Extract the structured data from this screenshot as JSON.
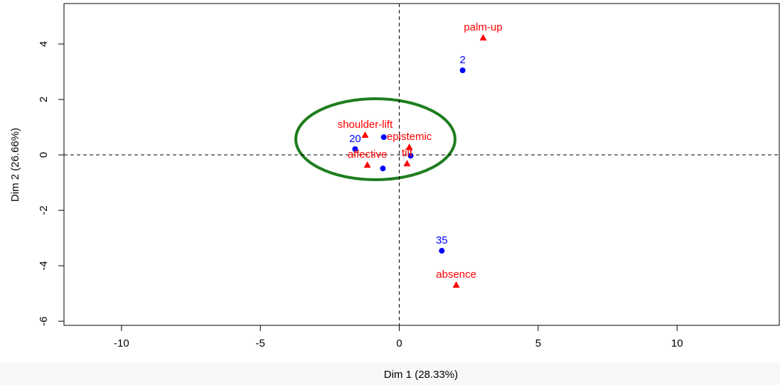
{
  "chart_data": {
    "type": "scatter",
    "xlabel": "Dim 1 (28.33%)",
    "ylabel": "Dim 2 (26.66%)",
    "xlim": [
      -12.07,
      13.68
    ],
    "ylim": [
      -6.15,
      5.46
    ],
    "xticks": [
      -10,
      -5,
      0,
      5,
      10
    ],
    "yticks": [
      -6,
      -4,
      -2,
      0,
      2,
      4
    ],
    "reference_lines": {
      "x": 0,
      "y": 0
    },
    "series": [
      {
        "color": "#0000ff",
        "marker": "circle",
        "x": [
          2.28,
          1.53,
          -1.59,
          -0.56,
          -0.59,
          0.41
        ],
        "values": [
          3.05,
          -3.46,
          0.21,
          0.64,
          -0.49,
          -0.03
        ],
        "labels": [
          "2",
          "35",
          "20",
          null,
          null,
          null
        ]
      },
      {
        "color": "#ff0000",
        "marker": "triangle",
        "x": [
          3.02,
          -1.23,
          0.36,
          -1.15,
          0.28,
          2.05
        ],
        "values": [
          4.23,
          0.72,
          0.28,
          -0.36,
          -0.31,
          -4.69
        ],
        "labels": [
          "palm-up",
          "shoulder-lift",
          "epistemic",
          "affective",
          "tilt",
          "absence"
        ]
      }
    ]
  }
}
